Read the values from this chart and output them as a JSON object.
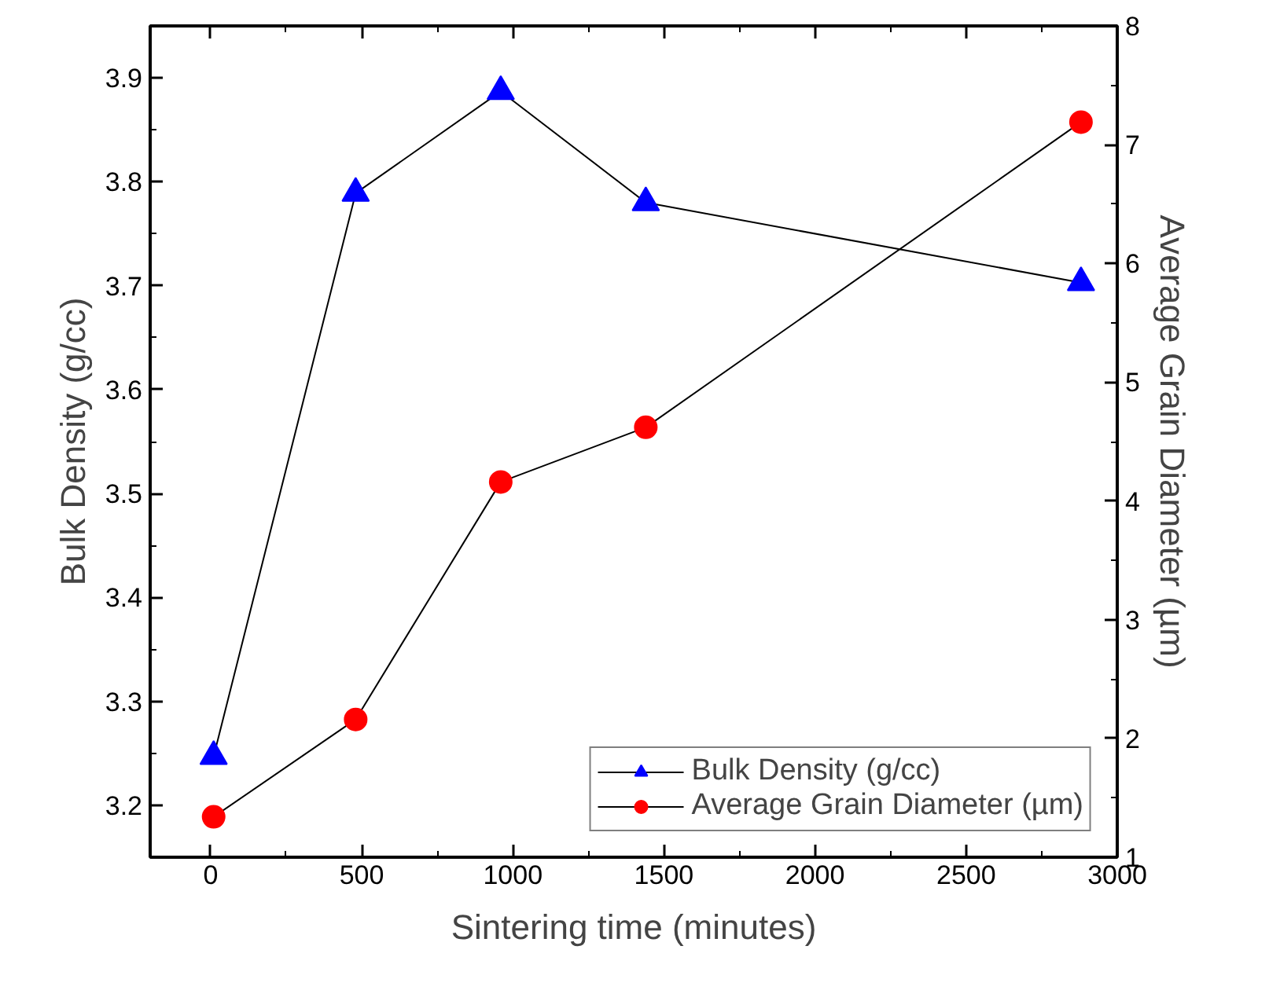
{
  "chart_data": {
    "type": "line",
    "xlabel": "Sintering time (minutes)",
    "ylabel": "Bulk Density (g/cc)",
    "y2label": "Average Grain Diameter (µm)",
    "x": [
      10,
      480,
      960,
      1440,
      2880
    ],
    "series": [
      {
        "name": "Bulk Density (g/cc)",
        "color": "#0000ff",
        "marker": "triangle",
        "values": [
          3.247,
          3.789,
          3.887,
          3.78,
          3.703
        ]
      },
      {
        "name": "Average Grain Diameter (µm)",
        "color": "#ff0000",
        "marker": "circle",
        "axis": "y2",
        "values": [
          1.34,
          2.16,
          4.16,
          4.62,
          7.19
        ]
      }
    ],
    "xlim": [
      -200,
      3000
    ],
    "xticks": [
      0,
      500,
      1000,
      1500,
      2000,
      2500,
      3000
    ],
    "ylim": [
      3.15,
      3.95
    ],
    "yticks": [
      3.2,
      3.3,
      3.4,
      3.5,
      3.6,
      3.7,
      3.8,
      3.9
    ],
    "y2lim": [
      1,
      8
    ],
    "y2ticks": [
      1,
      2,
      3,
      4,
      5,
      6,
      7,
      8
    ],
    "grid": false,
    "legend": "bottom right",
    "line_style": "solid"
  }
}
